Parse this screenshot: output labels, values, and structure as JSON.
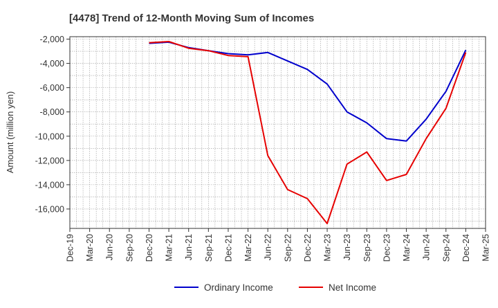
{
  "chart_data": {
    "type": "line",
    "title": "[4478]  Trend of 12-Month Moving Sum of Incomes",
    "xlabel": "",
    "ylabel": "Amount (million yen)",
    "ylim": [
      -17600,
      -1800
    ],
    "yticks": [
      -2000,
      -4000,
      -6000,
      -8000,
      -10000,
      -12000,
      -14000,
      -16000
    ],
    "ytick_labels": [
      "-2,000",
      "-4,000",
      "-6,000",
      "-8,000",
      "-10,000",
      "-12,000",
      "-14,000",
      "-16,000"
    ],
    "x_tick_labels": [
      "Dec-19",
      "Mar-20",
      "Jun-20",
      "Sep-20",
      "Dec-20",
      "Mar-21",
      "Jun-21",
      "Sep-21",
      "Dec-21",
      "Mar-22",
      "Jun-22",
      "Sep-22",
      "Dec-22",
      "Mar-23",
      "Jun-23",
      "Sep-23",
      "Dec-23",
      "Mar-24",
      "Jun-24",
      "Sep-24",
      "Dec-24",
      "Mar-25"
    ],
    "grid": true,
    "legend_position": "bottom-center",
    "series": [
      {
        "name": "Ordinary Income",
        "color": "#0000cc",
        "x": [
          "Dec-20",
          "Mar-21",
          "Jun-21",
          "Sep-21",
          "Dec-21",
          "Mar-22",
          "Jun-22",
          "Sep-22",
          "Dec-22",
          "Mar-23",
          "Jun-23",
          "Sep-23",
          "Dec-23",
          "Mar-24",
          "Jun-24",
          "Sep-24",
          "Dec-24"
        ],
        "values": [
          -2350,
          -2250,
          -2700,
          -2950,
          -3200,
          -3300,
          -3100,
          -3800,
          -4500,
          -5700,
          -8000,
          -8900,
          -10200,
          -10400,
          -8600,
          -6300,
          -2900
        ]
      },
      {
        "name": "Net Income",
        "color": "#e60000",
        "x": [
          "Dec-20",
          "Mar-21",
          "Jun-21",
          "Sep-21",
          "Dec-21",
          "Mar-22",
          "Jun-22",
          "Sep-22",
          "Dec-22",
          "Mar-23",
          "Jun-23",
          "Sep-23",
          "Dec-23",
          "Mar-24",
          "Jun-24",
          "Sep-24",
          "Dec-24"
        ],
        "values": [
          -2300,
          -2200,
          -2750,
          -2950,
          -3350,
          -3450,
          -11600,
          -14400,
          -15150,
          -17200,
          -12300,
          -11300,
          -13650,
          -13150,
          -10200,
          -7700,
          -3100
        ]
      }
    ]
  }
}
